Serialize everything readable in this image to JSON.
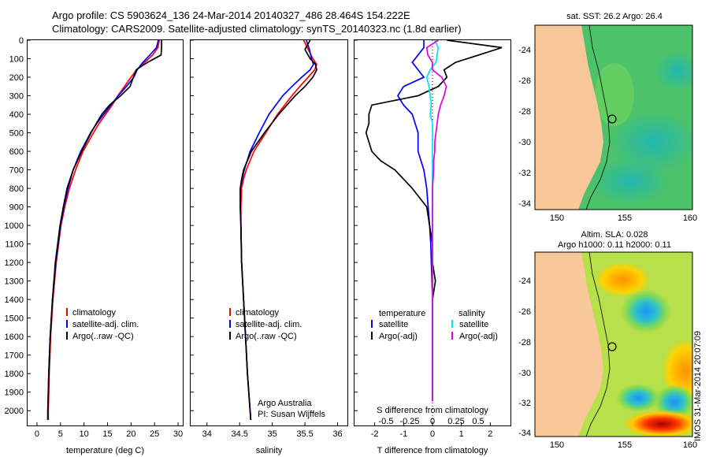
{
  "header": {
    "line1": "Argo profile: CS 5903624_136 24-Mar-2014 20140327_486 28.464S 154.222E",
    "line2": "Climatology: CARS2009. Satellite-adjusted climatology: synTS_20140323.nc (1.8d earlier)"
  },
  "colors": {
    "climatology": "#ff0000",
    "satellite": "#0000ff",
    "argo": "#000000",
    "salinity_satellite": "#00e5ee",
    "salinity_argo": "#e000e0",
    "land": "#f8c89a"
  },
  "depth_ticks": [
    "0",
    "100",
    "200",
    "300",
    "400",
    "500",
    "600",
    "700",
    "800",
    "900",
    "1000",
    "1100",
    "1200",
    "1300",
    "1400",
    "1500",
    "1600",
    "1700",
    "1800",
    "1900",
    "2000"
  ],
  "chart_data": [
    {
      "type": "line",
      "xlabel": "temperature (deg C)",
      "ylabel": "",
      "xlim": [
        -2,
        31
      ],
      "ylim": [
        2080,
        0
      ],
      "xticks": [
        "0",
        "5",
        "10",
        "15",
        "20",
        "25",
        "30"
      ],
      "legend": [
        "climatology",
        "satellite-adj. clim.",
        "Argo(..raw -QC)"
      ],
      "depth": [
        0,
        40,
        80,
        120,
        160,
        200,
        250,
        300,
        350,
        400,
        450,
        500,
        600,
        700,
        800,
        900,
        1000,
        1200,
        1400,
        1600,
        1800,
        2000,
        2050
      ],
      "series": [
        {
          "name": "climatology",
          "values": [
            26.0,
            25.7,
            24.6,
            22.9,
            21.2,
            20.0,
            18.6,
            17.2,
            16.0,
            14.6,
            13.2,
            12.0,
            9.8,
            8.2,
            6.9,
            5.9,
            5.1,
            4.1,
            3.4,
            2.9,
            2.6,
            2.4,
            2.4
          ]
        },
        {
          "name": "satellite-adj. clim.",
          "values": [
            25.8,
            25.4,
            24.0,
            22.5,
            21.3,
            20.6,
            19.0,
            17.3,
            15.7,
            14.2,
            12.7,
            11.4,
            9.3,
            7.7,
            6.6,
            5.7,
            5.0,
            4.0,
            3.3,
            2.8,
            2.5,
            2.3,
            2.3
          ]
        },
        {
          "name": "Argo(..raw -QC)",
          "values": [
            26.5,
            26.5,
            26.4,
            23.5,
            21.1,
            20.5,
            19.8,
            17.8,
            15.4,
            13.8,
            12.6,
            11.5,
            9.5,
            7.7,
            6.4,
            5.6,
            4.9,
            3.9,
            3.3,
            2.8,
            2.5,
            2.3,
            2.3
          ]
        }
      ]
    },
    {
      "type": "line",
      "xlabel": "salinity",
      "ylabel": "",
      "xlim": [
        33.75,
        36.15
      ],
      "ylim": [
        2080,
        0
      ],
      "xticks": [
        "34",
        "34.5",
        "35",
        "35.5",
        "36"
      ],
      "legend": [
        "climatology",
        "satellite-adj. clim.",
        "Argo(..raw -QC)"
      ],
      "annotation": [
        "Argo Australia",
        "PI: Susan Wijffels"
      ],
      "depth": [
        0,
        50,
        100,
        130,
        160,
        200,
        250,
        300,
        400,
        500,
        600,
        700,
        750,
        800,
        900,
        1000,
        1200,
        1400,
        1600,
        1800,
        2000,
        2050
      ],
      "series": [
        {
          "name": "climatology",
          "values": [
            35.48,
            35.55,
            35.62,
            35.68,
            35.65,
            35.55,
            35.42,
            35.3,
            35.08,
            34.9,
            34.72,
            34.6,
            34.56,
            34.53,
            34.52,
            34.52,
            34.53,
            34.56,
            34.59,
            34.62,
            34.66,
            34.67
          ]
        },
        {
          "name": "satellite-adj. clim.",
          "values": [
            35.52,
            35.57,
            35.6,
            35.63,
            35.58,
            35.45,
            35.3,
            35.16,
            34.95,
            34.8,
            34.66,
            34.57,
            34.54,
            34.51,
            34.51,
            34.52,
            34.53,
            34.56,
            34.59,
            34.62,
            34.66,
            34.67
          ]
        },
        {
          "name": "Argo(..raw -QC)",
          "values": [
            35.58,
            35.5,
            35.58,
            35.66,
            35.68,
            35.62,
            35.5,
            35.35,
            35.1,
            34.88,
            34.68,
            34.56,
            34.53,
            34.51,
            34.51,
            34.52,
            34.53,
            34.56,
            34.59,
            34.62,
            34.66,
            34.67
          ]
        }
      ]
    },
    {
      "type": "line",
      "xlabel": "T difference from climatology",
      "xlabel_top": "S difference from climatology",
      "ylabel": "",
      "xlim": [
        -2.7,
        2.7
      ],
      "ylim": [
        2080,
        0
      ],
      "xticks": [
        "-2",
        "-1",
        "0",
        "1",
        "2"
      ],
      "xticks_top": [
        "-0.5",
        "-0.25",
        "0",
        "0.25",
        "0.5"
      ],
      "legend_headers": [
        "temperature",
        "salinity"
      ],
      "legend": [
        "satellite",
        "Argo(-adj)",
        "satellite",
        "Argo(-adj)"
      ],
      "depth": [
        0,
        40,
        80,
        120,
        160,
        200,
        250,
        300,
        350,
        400,
        450,
        500,
        550,
        600,
        650,
        700,
        800,
        900,
        1000,
        1100,
        1200,
        1300,
        1400,
        1500,
        1600,
        1800,
        1900,
        1950
      ],
      "series": [
        {
          "name": "temperature satellite",
          "values": [
            -0.3,
            -0.3,
            -0.5,
            -0.7,
            -0.5,
            -0.3,
            -1.0,
            -1.2,
            -1.0,
            -0.7,
            -0.6,
            -0.5,
            -0.5,
            -0.5,
            -0.4,
            -0.3,
            -0.2,
            -0.15,
            -0.1,
            -0.06,
            -0.04,
            -0.02,
            0.0,
            0.0,
            0.0,
            0.0,
            0.0,
            0.0
          ]
        },
        {
          "name": "temperature Argo(-adj)",
          "values": [
            0.5,
            2.4,
            1.6,
            0.8,
            0.4,
            0.5,
            0.2,
            -0.5,
            -2.1,
            -2.2,
            -2.2,
            -2.3,
            -2.2,
            -2.1,
            -1.8,
            -1.3,
            -0.7,
            -0.2,
            -0.1,
            0.0,
            0.0,
            0.1,
            0.0,
            0.0,
            0.0,
            0.0,
            0.0,
            0.0
          ]
        },
        {
          "name": "salinity satellite",
          "values": [
            0.02,
            0.05,
            0.04,
            0.03,
            -0.02,
            -0.05,
            -0.03,
            -0.02,
            -0.01,
            -0.02,
            0.0,
            0.0,
            0.0,
            0.0,
            0.0,
            0.0,
            0.0,
            0.0,
            0.0,
            0.0,
            0.0,
            0.0,
            0.0,
            0.0,
            0.0,
            0.0,
            0.0,
            0.0
          ]
        },
        {
          "name": "salinity Argo(-adj)",
          "values": [
            0.05,
            -0.05,
            -0.04,
            0.0,
            0.0,
            0.08,
            0.12,
            0.1,
            0.07,
            0.05,
            0.04,
            0.03,
            0.02,
            0.02,
            0.01,
            0.01,
            0.0,
            0.0,
            0.0,
            0.0,
            0.0,
            0.0,
            0.0,
            0.0,
            0.0,
            0.0,
            0.0,
            0.0
          ]
        }
      ]
    }
  ],
  "maps": [
    {
      "title": "sat. SST: 26.2 Argo: 26.4",
      "yticks": [
        "-24",
        "-26",
        "-28",
        "-30",
        "-32",
        "-34"
      ],
      "xticks": [
        "150",
        "155",
        "160"
      ]
    },
    {
      "title1": "Altim. SLA: 0.028",
      "title2": "Argo h1000: 0.11 h2000: 0.11",
      "yticks": [
        "-24",
        "-26",
        "-28",
        "-30",
        "-32",
        "-34"
      ],
      "xticks": [
        "150",
        "155",
        "160"
      ]
    }
  ],
  "credit": "IMOS 31-Mar-2014 20:07:09"
}
